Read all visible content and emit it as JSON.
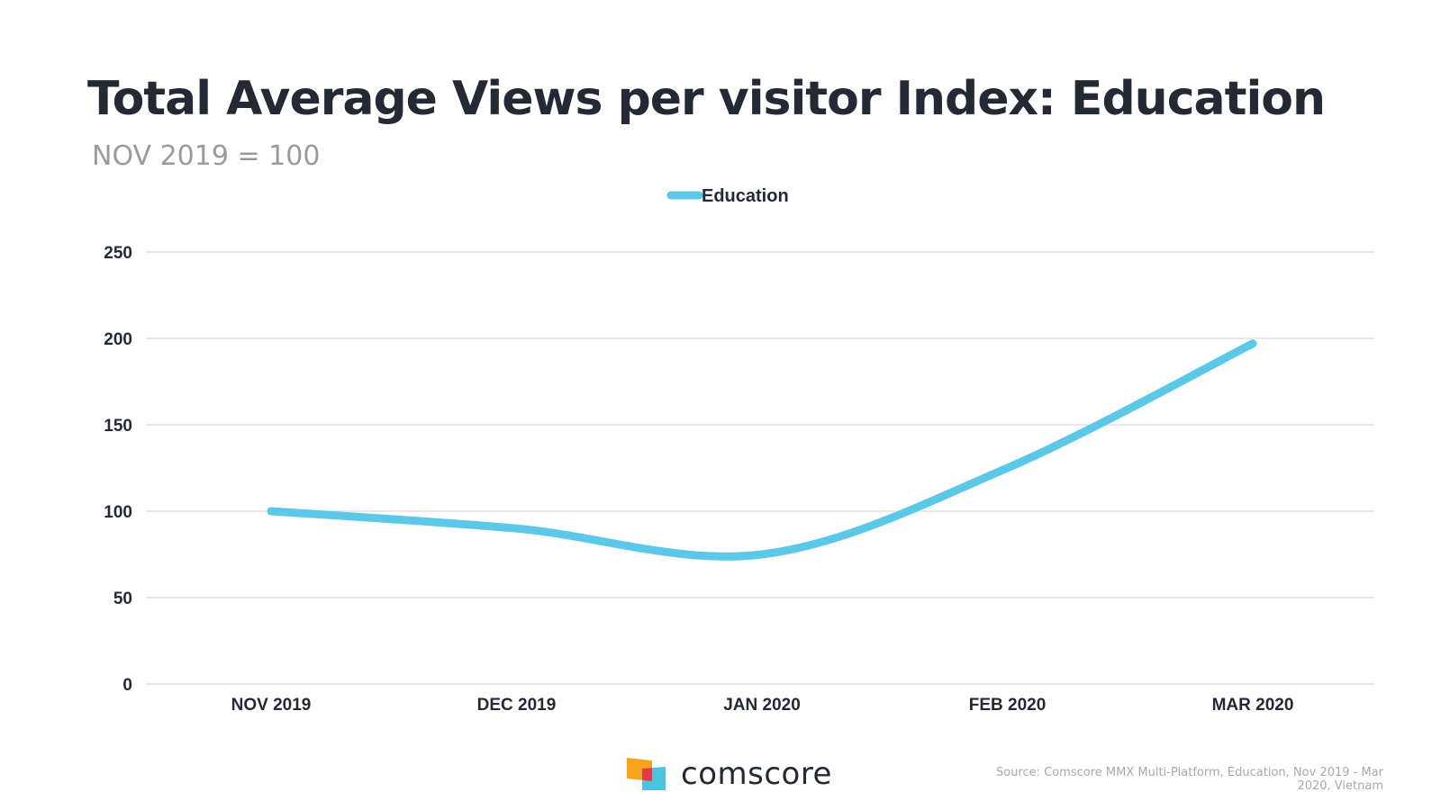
{
  "header": {
    "title": "Total Average Views per visitor Index: Education",
    "subtitle": "NOV 2019 = 100"
  },
  "chart_data": {
    "type": "line",
    "categories": [
      "NOV 2019",
      "DEC 2019",
      "JAN 2020",
      "FEB 2020",
      "MAR 2020"
    ],
    "series": [
      {
        "name": "Education",
        "values": [
          100,
          90,
          75,
          125,
          197
        ],
        "color": "#5bc8e8"
      }
    ],
    "yticks": [
      0,
      50,
      100,
      150,
      200,
      250
    ],
    "ylim": [
      0,
      250
    ],
    "grid": true,
    "legend_position": "top-center",
    "line_style": "smooth"
  },
  "footer": {
    "brand": "comscore",
    "source": "Source: Comscore MMX Multi-Platform, Education, Nov 2019 - Mar 2020, Vietnam"
  },
  "colors": {
    "title": "#232a35",
    "subtitle": "#9a9a9a",
    "grid": "#dcdcdc",
    "logo_orange": "#f7a41d",
    "logo_red": "#e8374a",
    "logo_blue": "#4ec3e0"
  }
}
